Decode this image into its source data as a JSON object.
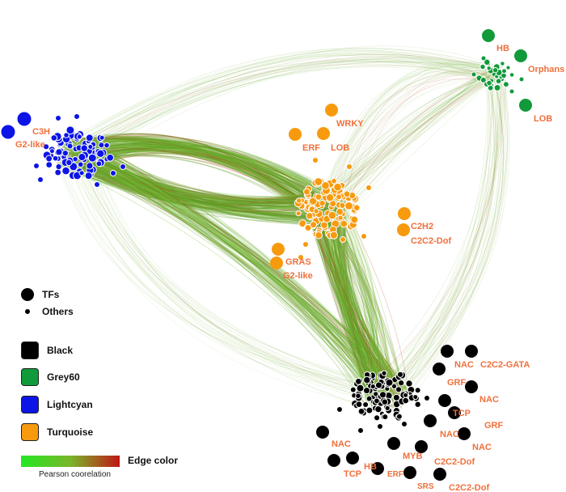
{
  "colors": {
    "black": "#000000",
    "grey60": "#119a3a",
    "lightcyan": "#0c14e6",
    "turquoise": "#f79a0e",
    "label": "#f0703c",
    "edge_low": "#23e823",
    "edge_high": "#c01616"
  },
  "clusters": {
    "blue_labels": [
      "C3H",
      "G2-like"
    ],
    "green_labels": [
      "HB",
      "Orphans",
      "LOB"
    ],
    "orange_labels": [
      "WRKY",
      "ERF",
      "LOB",
      "C2H2",
      "C2C2-Dof",
      "GRAS",
      "G2-like"
    ],
    "black_labels": [
      "NAC",
      "C2C2-GATA",
      "GRF",
      "NAC",
      "TCP",
      "GRF",
      "NAC",
      "NAC",
      "NAC",
      "MYB",
      "C2C2-Dof",
      "TCP",
      "HB",
      "ERF",
      "SRS",
      "C2C2-Dof"
    ]
  },
  "legend": {
    "tfs": "TFs",
    "others": "Others",
    "modules": [
      "Black",
      "Grey60",
      "Lightcyan",
      "Turquoise"
    ],
    "edge_color": "Edge color",
    "gradient_caption": "Pearson coorelation"
  }
}
